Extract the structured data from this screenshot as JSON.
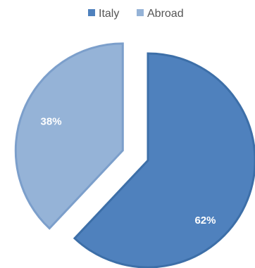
{
  "chart_data": {
    "type": "pie",
    "categories": [
      "Italy",
      "Abroad"
    ],
    "values": [
      62,
      38
    ],
    "data_labels": [
      "62%",
      "38%"
    ],
    "title": "",
    "legend_position": "top",
    "colors": {
      "Italy": "#4f81bd",
      "Abroad": "#95b3d7",
      "Italy_border": "#3d6fa8",
      "Abroad_border": "#7c9fcb"
    },
    "exploded": true
  }
}
